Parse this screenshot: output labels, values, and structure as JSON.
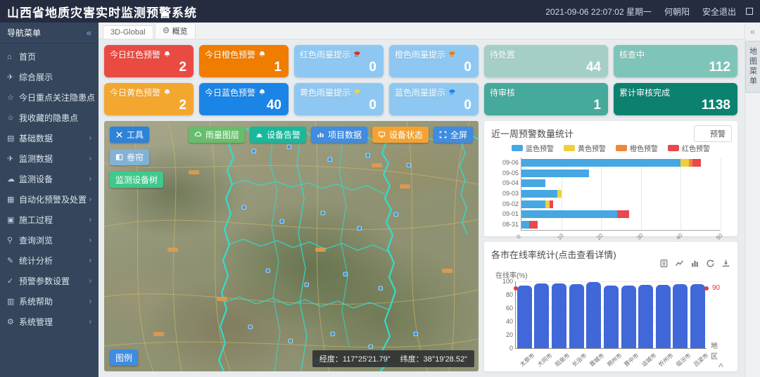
{
  "header": {
    "title": "山西省地质灾害实时监测预警系统",
    "datetime": "2021-09-06 22:07:02 星期一",
    "user": "何朝阳",
    "logout": "安全退出"
  },
  "sidebar": {
    "title": "导航菜单",
    "collapse_icon": "«",
    "items": [
      {
        "icon": "home",
        "label": "首页",
        "expandable": false
      },
      {
        "icon": "send",
        "label": "综合展示",
        "expandable": false
      },
      {
        "icon": "star",
        "label": "今日重点关注隐患点",
        "expandable": false
      },
      {
        "icon": "star",
        "label": "我收藏的隐患点",
        "expandable": false
      },
      {
        "icon": "calendar",
        "label": "基础数据",
        "expandable": true
      },
      {
        "icon": "send",
        "label": "监测数据",
        "expandable": true
      },
      {
        "icon": "cloud",
        "label": "监测设备",
        "expandable": true
      },
      {
        "icon": "doc",
        "label": "自动化预警及处置",
        "expandable": true
      },
      {
        "icon": "truck",
        "label": "施工过程",
        "expandable": true
      },
      {
        "icon": "search",
        "label": "查询浏览",
        "expandable": true
      },
      {
        "icon": "pen",
        "label": "统计分析",
        "expandable": true
      },
      {
        "icon": "check",
        "label": "预警参数设置",
        "expandable": true
      },
      {
        "icon": "book",
        "label": "系统帮助",
        "expandable": true
      },
      {
        "icon": "gear",
        "label": "系统管理",
        "expandable": true
      }
    ]
  },
  "tabs": [
    {
      "label": "3D-Global",
      "active": false,
      "icon": ""
    },
    {
      "label": "概览",
      "active": true,
      "icon": "globe"
    }
  ],
  "warning_cards": [
    {
      "label": "今日红色预警",
      "value": "2",
      "bg": "#e94b43",
      "icon": "bell",
      "icon_color": "#ffffff"
    },
    {
      "label": "今日橙色预警",
      "value": "1",
      "bg": "#f07c00",
      "icon": "bell",
      "icon_color": "#ffffff"
    },
    {
      "label": "红色雨量提示",
      "value": "0",
      "bg": "#8ec8f2",
      "icon": "rain",
      "icon_color": "#d93025"
    },
    {
      "label": "橙色雨量提示",
      "value": "0",
      "bg": "#8ec8f2",
      "icon": "rain",
      "icon_color": "#f07c00"
    },
    {
      "label": "今日黄色预警",
      "value": "2",
      "bg": "#f3a72f",
      "icon": "bell",
      "icon_color": "#ffffff"
    },
    {
      "label": "今日蓝色预警",
      "value": "40",
      "bg": "#1b84e7",
      "icon": "bell",
      "icon_color": "#ffffff"
    },
    {
      "label": "黄色雨量提示",
      "value": "0",
      "bg": "#8ec8f2",
      "icon": "rain",
      "icon_color": "#f2d13f"
    },
    {
      "label": "蓝色雨量提示",
      "value": "0",
      "bg": "#8ec8f2",
      "icon": "rain",
      "icon_color": "#1b84e7"
    }
  ],
  "task_cards": [
    {
      "label": "待处置",
      "value": "44",
      "bg": "#a5cfc6"
    },
    {
      "label": "核查中",
      "value": "112",
      "bg": "#7fc4b8"
    },
    {
      "label": "待审核",
      "value": "1",
      "bg": "#45a99b"
    },
    {
      "label": "累计审核完成",
      "value": "1138",
      "bg": "#0d8170"
    }
  ],
  "map": {
    "tool_button": {
      "label": "工具",
      "bg": "#2e82d8",
      "icon": "tools"
    },
    "curtain_button": {
      "label": "卷帘",
      "bg": "rgba(126,181,228,0.85)",
      "icon": "curtain"
    },
    "device_tree_button": {
      "label": "监测设备树",
      "bg": "#3fc98c"
    },
    "layer_buttons": [
      {
        "label": "雨量图层",
        "bg": "#67bd6b",
        "icon": "cloud"
      },
      {
        "label": "设备告警",
        "bg": "#17b89c",
        "icon": "alarm"
      },
      {
        "label": "项目数据",
        "bg": "#3f8ce0",
        "icon": "chart"
      },
      {
        "label": "设备状态",
        "bg": "#f5a233",
        "icon": "monitor"
      },
      {
        "label": "全屏",
        "bg": "#3f8ce0",
        "icon": "fullscreen"
      }
    ],
    "legend_button": "图例",
    "coordinates": {
      "lon_label": "经度：",
      "lon_value": "117°25'21.79\"",
      "lat_label": "纬度：",
      "lat_value": "38°19'28.52\""
    }
  },
  "right_tab": {
    "collapse_icon": "«",
    "label": "地图菜单"
  },
  "collapse_up": "^",
  "chart_data": [
    {
      "type": "bar",
      "orientation": "horizontal",
      "title": "近一周预警数量统计",
      "filter_button": "预警",
      "categories": [
        "09-06",
        "09-05",
        "09-04",
        "09-03",
        "09-02",
        "09-01",
        "08-31"
      ],
      "series": [
        {
          "name": "蓝色预警",
          "color": "#47a7e3",
          "values": [
            40,
            17,
            6,
            9,
            6,
            24,
            2
          ]
        },
        {
          "name": "黄色预警",
          "color": "#f0cf3f",
          "values": [
            2,
            0,
            0,
            1,
            1,
            0,
            0
          ]
        },
        {
          "name": "橙色预警",
          "color": "#f0863c",
          "values": [
            1,
            0,
            0,
            0,
            0,
            0,
            0
          ]
        },
        {
          "name": "红色预警",
          "color": "#e8494d",
          "values": [
            2,
            0,
            0,
            0,
            1,
            3,
            2
          ]
        }
      ],
      "xlim": [
        0,
        50
      ],
      "xticks": [
        0,
        10,
        20,
        30,
        40,
        50
      ],
      "legend_position": "top",
      "grid": true
    },
    {
      "type": "bar",
      "orientation": "vertical",
      "title": "各市在线率统计(点击查看详情)",
      "ylabel": "在线率(%)",
      "xlabel": "地区",
      "categories": [
        "太原市",
        "大同市",
        "阳泉市",
        "长治市",
        "晋城市",
        "朔州市",
        "晋中市",
        "运城市",
        "忻州市",
        "临汾市",
        "吕梁市"
      ],
      "values": [
        94,
        97,
        97,
        96,
        99,
        94,
        94,
        95,
        95,
        96,
        96
      ],
      "bar_color": "#4168d9",
      "markline": {
        "value": 90,
        "color": "#e0393f",
        "label": "90"
      },
      "ylim": [
        0,
        100
      ],
      "yticks": [
        0,
        20,
        40,
        60,
        80,
        100
      ],
      "toolbox": [
        "data-view",
        "line-chart",
        "bar-chart",
        "refresh",
        "download"
      ],
      "grid": true
    }
  ]
}
